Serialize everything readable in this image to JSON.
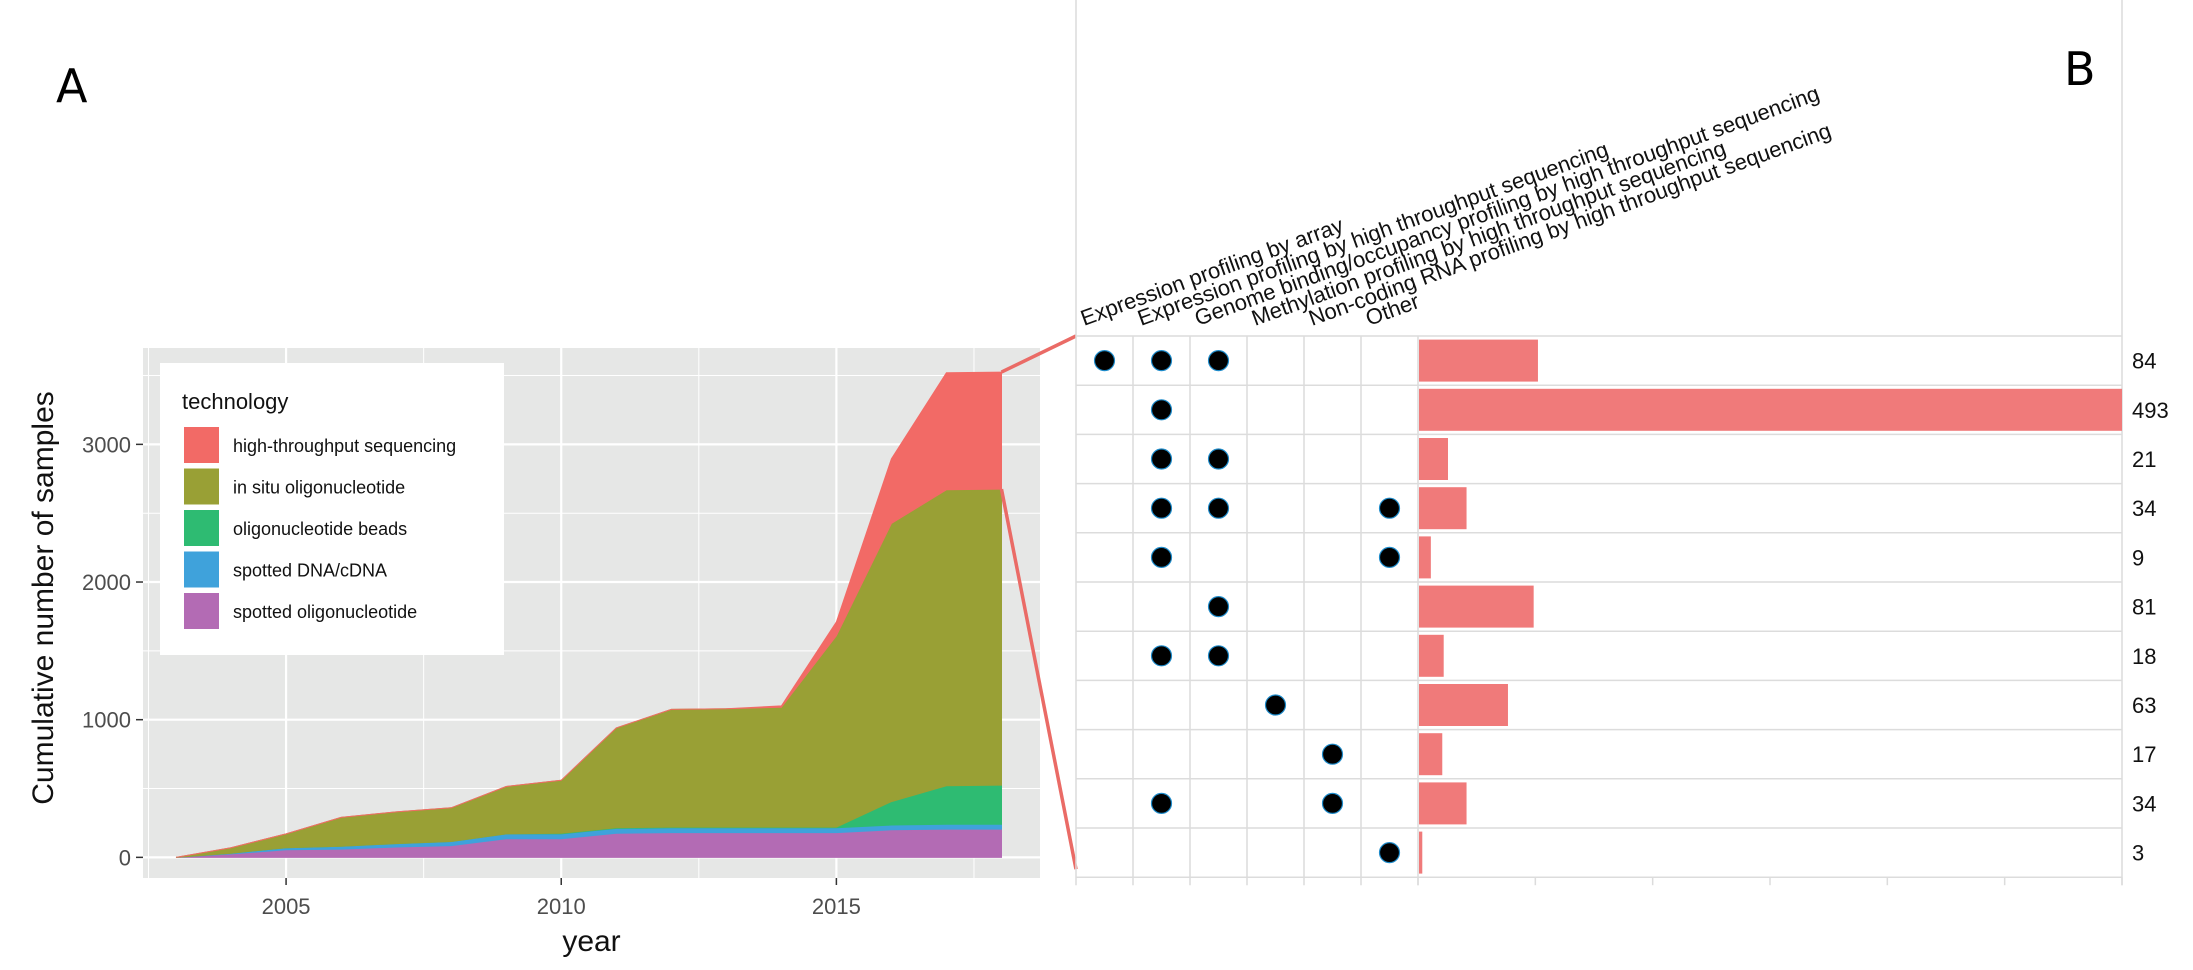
{
  "panel_labels": {
    "left": "A",
    "right": "B"
  },
  "chart_data": [
    {
      "type": "area",
      "stacked": true,
      "xlabel": "year",
      "ylabel": "Cumulative number of samples",
      "xlim": [
        2002.4,
        2018.7
      ],
      "ylim": [
        -150,
        3700
      ],
      "x_ticks": [
        2005,
        2010,
        2015
      ],
      "y_ticks": [
        0,
        1000,
        2000,
        3000
      ],
      "grid": true,
      "background": "#e6e7e6",
      "legend": {
        "title": "technology",
        "placement": "top-left",
        "order": [
          "high-throughput sequencing",
          "in situ oligonucleotide",
          "oligonucleotide beads",
          "spotted DNA/cDNA",
          "spotted oligonucleotide"
        ]
      },
      "x": [
        2003,
        2004,
        2005,
        2006,
        2007,
        2008,
        2009,
        2010,
        2011,
        2012,
        2013,
        2014,
        2015,
        2016,
        2017,
        2018
      ],
      "series": [
        {
          "name": "spotted oligonucleotide",
          "color": "#b36bb4",
          "values": [
            0,
            25,
            55,
            60,
            75,
            85,
            135,
            135,
            175,
            180,
            180,
            180,
            180,
            200,
            205,
            205
          ]
        },
        {
          "name": "spotted DNA/cDNA",
          "color": "#3fa2db",
          "values": [
            0,
            5,
            15,
            20,
            25,
            30,
            35,
            35,
            35,
            35,
            35,
            35,
            35,
            35,
            35,
            35
          ]
        },
        {
          "name": "oligonucleotide beads",
          "color": "#2ebb72",
          "values": [
            0,
            0,
            0,
            0,
            0,
            0,
            0,
            5,
            5,
            5,
            5,
            5,
            5,
            170,
            280,
            285
          ]
        },
        {
          "name": "in situ oligonucleotide",
          "color": "#99a035",
          "values": [
            0,
            40,
            100,
            210,
            230,
            245,
            345,
            385,
            725,
            855,
            860,
            870,
            1390,
            2020,
            2150,
            2150
          ]
        },
        {
          "name": "high-throughput sequencing",
          "color": "#f26a66",
          "values": [
            0,
            0,
            0,
            0,
            0,
            0,
            0,
            0,
            0,
            0,
            0,
            10,
            100,
            470,
            850,
            850
          ]
        }
      ]
    },
    {
      "type": "bar",
      "orientation": "horizontal",
      "bar_color": "#f07a7a",
      "columns": [
        "Expression profiling by array",
        "Expression profiling by high throughput sequencing",
        "Genome binding/occupancy profiling by high throughput sequencing",
        "Methylation profiling by high throughput sequencing",
        "Non-coding RNA profiling by high throughput sequencing",
        "Other"
      ],
      "rows": [
        {
          "membership": [
            1,
            1,
            1,
            0,
            0,
            0
          ],
          "value": 84
        },
        {
          "membership": [
            0,
            1,
            0,
            0,
            0,
            0
          ],
          "value": 493
        },
        {
          "membership": [
            0,
            1,
            1,
            0,
            0,
            0
          ],
          "value": 21
        },
        {
          "membership": [
            0,
            1,
            1,
            0,
            0,
            1
          ],
          "value": 34
        },
        {
          "membership": [
            0,
            1,
            0,
            0,
            0,
            1
          ],
          "value": 9
        },
        {
          "membership": [
            0,
            0,
            1,
            0,
            0,
            0
          ],
          "value": 81
        },
        {
          "membership": [
            0,
            1,
            1,
            0,
            0,
            0
          ],
          "value": 18
        },
        {
          "membership": [
            0,
            0,
            0,
            1,
            0,
            0
          ],
          "value": 63
        },
        {
          "membership": [
            0,
            0,
            0,
            0,
            1,
            0
          ],
          "value": 17
        },
        {
          "membership": [
            0,
            1,
            0,
            0,
            1,
            0
          ],
          "value": 34
        },
        {
          "membership": [
            0,
            0,
            0,
            0,
            0,
            1
          ],
          "value": 3
        }
      ],
      "xlim": [
        0,
        493
      ]
    }
  ],
  "connector_color": "#ea6b66"
}
